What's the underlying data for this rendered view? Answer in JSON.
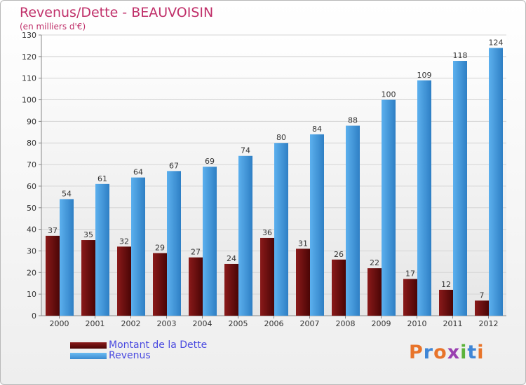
{
  "title": "Revenus/Dette - BEAUVOISIN",
  "subtitle": "(en milliers d'€)",
  "logo": {
    "text": "Proxiti",
    "colors": [
      "#e8742a",
      "#3f86d6",
      "#e8742a",
      "#9a3fb0",
      "#5cb33a",
      "#3f86d6",
      "#e8742a"
    ]
  },
  "colors": {
    "debt": "#6e0d0d",
    "revenue": "#4a9fe0",
    "title": "#c0306a",
    "legend_text": "#4a4ae0"
  },
  "chart_data": {
    "type": "bar",
    "categories": [
      "2000",
      "2001",
      "2002",
      "2003",
      "2004",
      "2005",
      "2006",
      "2007",
      "2008",
      "2009",
      "2010",
      "2011",
      "2012"
    ],
    "series": [
      {
        "name": "Montant de la Dette",
        "values": [
          37,
          35,
          32,
          29,
          27,
          24,
          36,
          31,
          26,
          22,
          17,
          12,
          7
        ],
        "color": "#6e0d0d"
      },
      {
        "name": "Revenus",
        "values": [
          54,
          61,
          64,
          67,
          69,
          74,
          80,
          84,
          88,
          100,
          109,
          118,
          124
        ],
        "color": "#4a9fe0"
      }
    ],
    "ylim": [
      0,
      130
    ],
    "yticks": [
      0,
      10,
      20,
      30,
      40,
      50,
      60,
      70,
      80,
      90,
      100,
      110,
      120,
      130
    ],
    "grid": true,
    "legend": "bottom-left"
  }
}
